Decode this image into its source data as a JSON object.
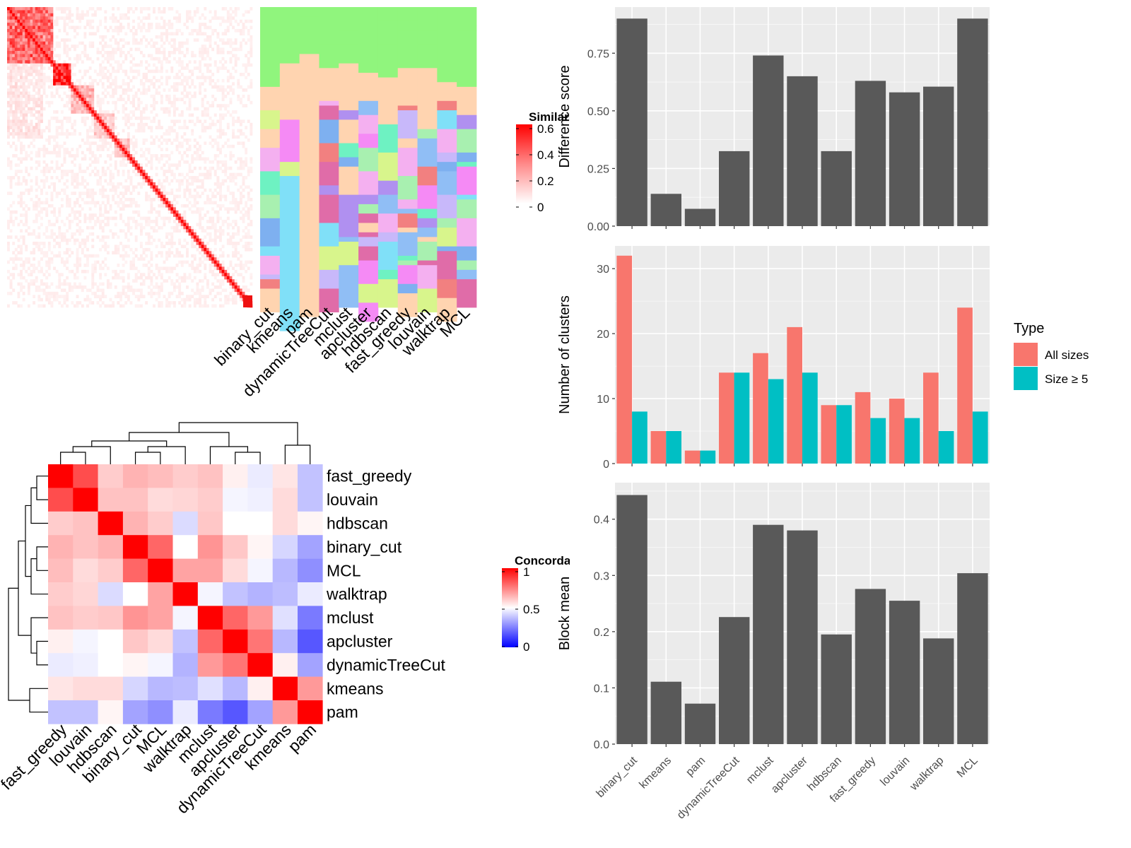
{
  "similarity_legend": {
    "title": "Similarity",
    "ticks": [
      "0.6",
      "0.4",
      "0.2",
      "0"
    ]
  },
  "concordance_legend": {
    "title": "Concordance",
    "ticks": [
      "1",
      "0.5",
      "0"
    ]
  },
  "colors": {
    "bar_gray": "#595959",
    "all_sizes": "#F8766D",
    "size_ge5": "#00BFC4",
    "panel_bg": "#EBEBEB",
    "heat_high": "#FF0000",
    "heat_mid": "#FFFFFF",
    "heat_low": "#0000FF"
  },
  "chart_data": [
    {
      "type": "heatmap",
      "name": "similarity",
      "column_labels": [
        "binary_cut",
        "kmeans",
        "pam",
        "dynamicTreeCut",
        "mclust",
        "apcluster",
        "hdbscan",
        "fast_greedy",
        "louvain",
        "walktrap",
        "MCL"
      ],
      "value_range": [
        0,
        0.6
      ]
    },
    {
      "type": "heatmap",
      "name": "concordance",
      "row_labels": [
        "fast_greedy",
        "louvain",
        "hdbscan",
        "binary_cut",
        "MCL",
        "walktrap",
        "mclust",
        "apcluster",
        "dynamicTreeCut",
        "kmeans",
        "pam"
      ],
      "col_labels": [
        "fast_greedy",
        "louvain",
        "hdbscan",
        "binary_cut",
        "MCL",
        "walktrap",
        "mclust",
        "apcluster",
        "dynamicTreeCut",
        "kmeans",
        "pam"
      ],
      "value_range": [
        0,
        1
      ],
      "values": [
        [
          1.0,
          0.85,
          0.6,
          0.65,
          0.63,
          0.6,
          0.62,
          0.53,
          0.46,
          0.55,
          0.38
        ],
        [
          0.85,
          1.0,
          0.62,
          0.62,
          0.57,
          0.58,
          0.6,
          0.48,
          0.47,
          0.57,
          0.38
        ],
        [
          0.6,
          0.62,
          1.0,
          0.65,
          0.6,
          0.43,
          0.61,
          0.5,
          0.5,
          0.57,
          0.52
        ],
        [
          0.65,
          0.62,
          0.65,
          1.0,
          0.8,
          0.5,
          0.71,
          0.61,
          0.52,
          0.42,
          0.32
        ],
        [
          0.63,
          0.57,
          0.6,
          0.8,
          1.0,
          0.68,
          0.68,
          0.57,
          0.48,
          0.36,
          0.28
        ],
        [
          0.6,
          0.58,
          0.43,
          0.5,
          0.68,
          1.0,
          0.48,
          0.38,
          0.35,
          0.37,
          0.46
        ],
        [
          0.62,
          0.6,
          0.61,
          0.71,
          0.68,
          0.48,
          1.0,
          0.8,
          0.7,
          0.44,
          0.24
        ],
        [
          0.53,
          0.48,
          0.5,
          0.61,
          0.57,
          0.38,
          0.8,
          1.0,
          0.77,
          0.36,
          0.17
        ],
        [
          0.46,
          0.47,
          0.5,
          0.52,
          0.48,
          0.35,
          0.7,
          0.77,
          1.0,
          0.53,
          0.32
        ],
        [
          0.55,
          0.57,
          0.57,
          0.42,
          0.36,
          0.37,
          0.44,
          0.36,
          0.53,
          1.0,
          0.7
        ],
        [
          0.38,
          0.38,
          0.52,
          0.32,
          0.28,
          0.46,
          0.24,
          0.17,
          0.32,
          0.7,
          1.0
        ]
      ]
    },
    {
      "type": "bar",
      "name": "difference",
      "categories": [
        "binary_cut",
        "kmeans",
        "pam",
        "dynamicTreeCut",
        "mclust",
        "apcluster",
        "hdbscan",
        "fast_greedy",
        "louvain",
        "walktrap",
        "MCL"
      ],
      "values": [
        0.9,
        0.14,
        0.075,
        0.325,
        0.74,
        0.65,
        0.325,
        0.63,
        0.58,
        0.605,
        0.9
      ],
      "ylabel": "Difference score",
      "ylim": [
        0,
        0.95
      ],
      "yticks": [
        "0.00",
        "0.25",
        "0.50",
        "0.75"
      ]
    },
    {
      "type": "bar",
      "name": "clusters",
      "categories": [
        "binary_cut",
        "kmeans",
        "pam",
        "dynamicTreeCut",
        "mclust",
        "apcluster",
        "hdbscan",
        "fast_greedy",
        "louvain",
        "walktrap",
        "MCL"
      ],
      "series": [
        {
          "name": "All sizes",
          "values": [
            32,
            5,
            2,
            14,
            17,
            21,
            9,
            11,
            10,
            14,
            24
          ]
        },
        {
          "name": "Size ≥ 5",
          "values": [
            8,
            5,
            2,
            14,
            13,
            14,
            9,
            7,
            7,
            5,
            8
          ]
        }
      ],
      "ylabel": "Number of clusters",
      "ylim": [
        0,
        33.5
      ],
      "yticks": [
        "0",
        "10",
        "20",
        "30"
      ],
      "legend": {
        "title": "Type",
        "position": "right"
      }
    },
    {
      "type": "bar",
      "name": "blockmean",
      "categories": [
        "binary_cut",
        "kmeans",
        "pam",
        "dynamicTreeCut",
        "mclust",
        "apcluster",
        "hdbscan",
        "fast_greedy",
        "louvain",
        "walktrap",
        "MCL"
      ],
      "values": [
        0.443,
        0.111,
        0.072,
        0.226,
        0.39,
        0.38,
        0.195,
        0.276,
        0.255,
        0.188,
        0.304
      ],
      "ylabel": "Block mean",
      "ylim": [
        0,
        0.465
      ],
      "yticks": [
        "0.0",
        "0.1",
        "0.2",
        "0.3",
        "0.4"
      ]
    }
  ]
}
